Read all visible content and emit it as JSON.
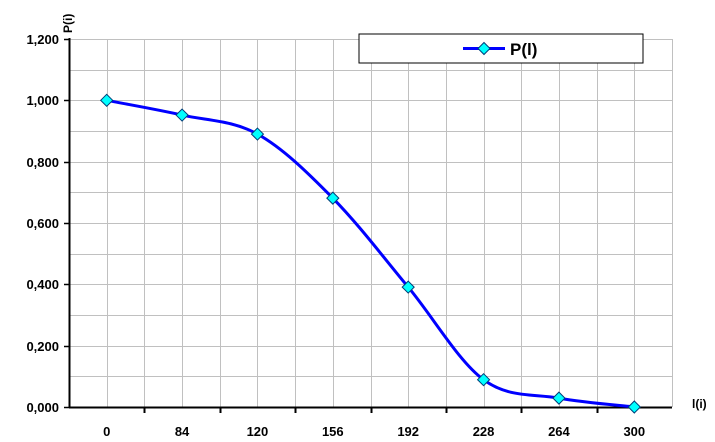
{
  "chart_data": {
    "type": "line",
    "title": "",
    "xlabel": "l(i)",
    "ylabel": "P(i)",
    "categories": [
      "0",
      "84",
      "120",
      "156",
      "192",
      "228",
      "264",
      "300"
    ],
    "series": [
      {
        "name": "P(l)",
        "color": "#0000ff",
        "marker_color": "#00ffff",
        "values": [
          1.0,
          0.952,
          0.89,
          0.681,
          0.391,
          0.089,
          0.029,
          0.0
        ]
      }
    ],
    "ylim": [
      0,
      1.2
    ],
    "yticks": [
      0,
      0.2,
      0.4,
      0.6,
      0.8,
      1.0,
      1.2
    ],
    "ytick_labels": [
      "0,000",
      "0,200",
      "0,400",
      "0,600",
      "0,800",
      "1,000",
      "1,200"
    ],
    "grid": true,
    "legend_position": "top-right",
    "colors": {
      "grid": "#c0c0c0",
      "axis": "#000000",
      "line": "#0000ff",
      "marker": "#00ffff"
    }
  }
}
